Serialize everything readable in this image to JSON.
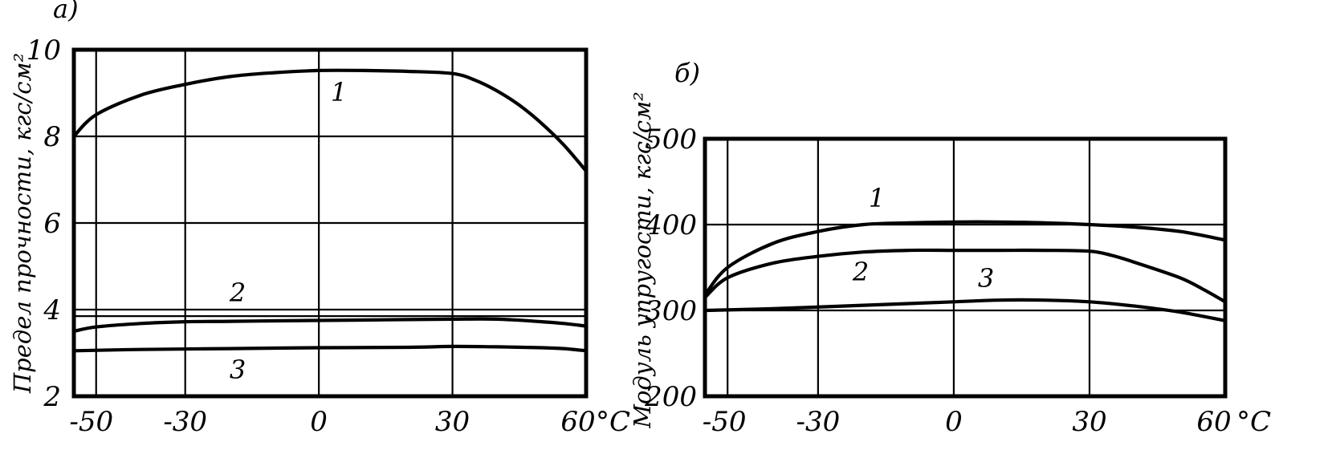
{
  "chart_data": [
    {
      "type": "line",
      "panel_label": "а)",
      "ylabel": "Предел прочности, кгс/см²",
      "x_unit": "°C",
      "xlim": [
        -55,
        60
      ],
      "ylim": [
        2,
        10
      ],
      "x_ticks": [
        -50,
        -30,
        0,
        30,
        60
      ],
      "x_tick_labels": [
        "-50",
        "-30",
        "0",
        "30",
        "60"
      ],
      "y_ticks": [
        2,
        4,
        6,
        8,
        10
      ],
      "y_tick_labels": [
        "2",
        "4",
        "6",
        "8",
        "10"
      ],
      "grid": true,
      "series": [
        {
          "name": "1",
          "x": [
            -55,
            -50,
            -40,
            -30,
            -20,
            -10,
            0,
            10,
            20,
            30,
            35,
            40,
            45,
            50,
            55,
            60
          ],
          "y": [
            8.0,
            8.5,
            8.95,
            9.2,
            9.38,
            9.47,
            9.52,
            9.52,
            9.5,
            9.45,
            9.3,
            9.05,
            8.72,
            8.3,
            7.8,
            7.2
          ]
        },
        {
          "name": "2",
          "x": [
            -55,
            -50,
            -40,
            -30,
            -20,
            -10,
            0,
            10,
            20,
            30,
            40,
            50,
            55,
            60
          ],
          "y": [
            3.5,
            3.6,
            3.68,
            3.72,
            3.73,
            3.74,
            3.75,
            3.76,
            3.77,
            3.78,
            3.78,
            3.72,
            3.68,
            3.62
          ]
        },
        {
          "name": "3",
          "x": [
            -55,
            -40,
            -20,
            0,
            20,
            30,
            40,
            50,
            55,
            60
          ],
          "y": [
            3.05,
            3.08,
            3.1,
            3.12,
            3.13,
            3.15,
            3.14,
            3.12,
            3.1,
            3.05
          ]
        }
      ],
      "extra_hlines": [
        3.85
      ]
    },
    {
      "type": "line",
      "panel_label": "б)",
      "ylabel": "Модуль упругости, кгс/см²",
      "x_unit": "°C",
      "xlim": [
        -55,
        60
      ],
      "ylim": [
        200,
        500
      ],
      "x_ticks": [
        -50,
        -30,
        0,
        30,
        60
      ],
      "x_tick_labels": [
        "-50",
        "-30",
        "0",
        "30",
        "60"
      ],
      "y_ticks": [
        200,
        300,
        400,
        500
      ],
      "y_tick_labels": [
        "200",
        "300",
        "400",
        "500"
      ],
      "grid": true,
      "series": [
        {
          "name": "1",
          "x": [
            -55,
            -50,
            -40,
            -30,
            -20,
            -10,
            0,
            10,
            20,
            30,
            40,
            50,
            60
          ],
          "y": [
            318,
            350,
            378,
            392,
            400,
            402,
            403,
            403,
            402,
            400,
            397,
            392,
            382
          ]
        },
        {
          "name": "2",
          "x": [
            -55,
            -50,
            -40,
            -30,
            -20,
            -10,
            0,
            10,
            20,
            30,
            35,
            40,
            50,
            55,
            60
          ],
          "y": [
            315,
            338,
            355,
            363,
            368,
            370,
            370,
            370,
            370,
            369,
            364,
            356,
            338,
            325,
            310
          ]
        },
        {
          "name": "3",
          "x": [
            -55,
            -40,
            -20,
            0,
            10,
            20,
            30,
            40,
            50,
            60
          ],
          "y": [
            300,
            302,
            306,
            310,
            312,
            312,
            310,
            305,
            298,
            288
          ]
        }
      ]
    }
  ]
}
